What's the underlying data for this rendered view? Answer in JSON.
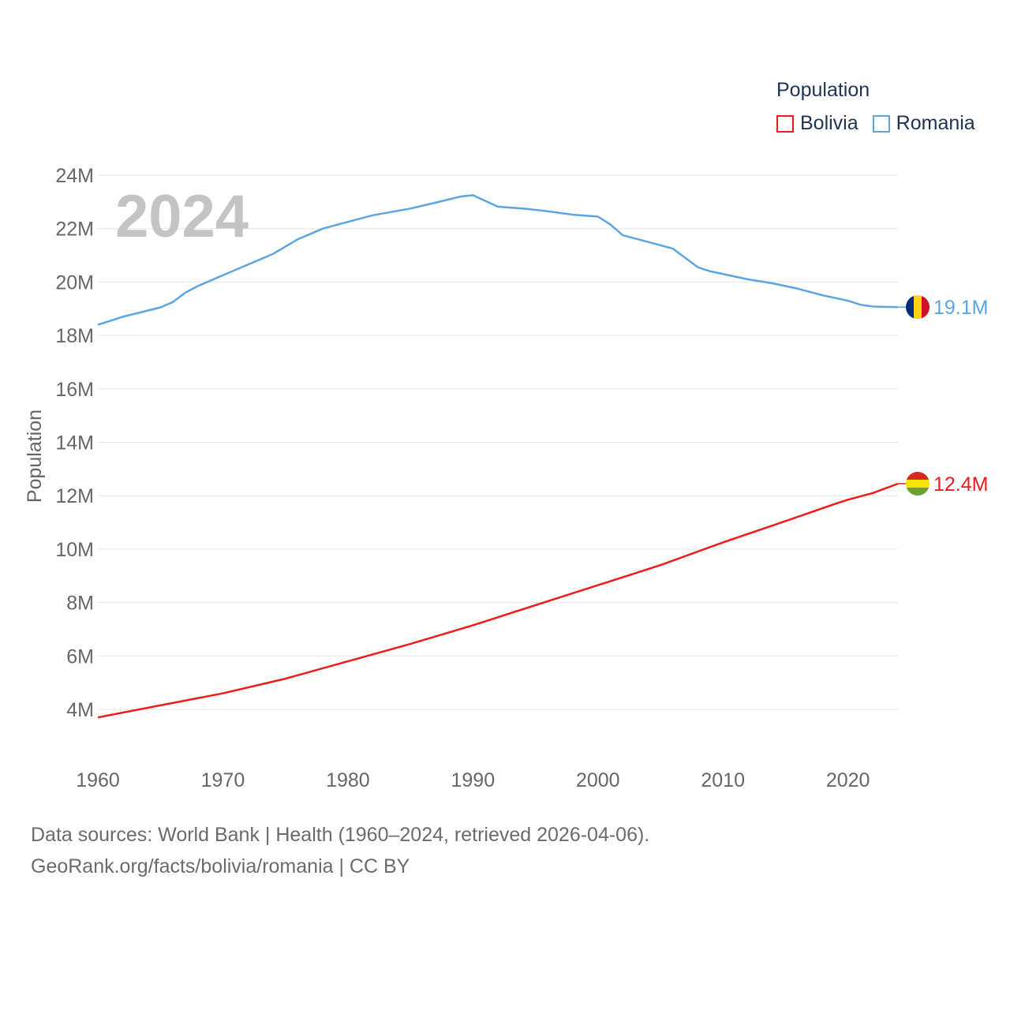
{
  "legend": {
    "title": "Population",
    "items": [
      {
        "name": "Bolivia",
        "color": "#ee1c1c"
      },
      {
        "name": "Romania",
        "color": "#5ba5e3"
      }
    ]
  },
  "footer": {
    "sources": "Data sources: World Bank | Health (1960–2024, retrieved 2026-04-06).",
    "credit": "GeoRank.org/facts/bolivia/romania | CC BY"
  },
  "chart_data": {
    "type": "line",
    "title": "Population",
    "year_label": "2024",
    "xlabel": "",
    "ylabel": "Population",
    "xlim": [
      1960,
      2024
    ],
    "ylim": [
      2000000,
      24000000
    ],
    "x_ticks": [
      1960,
      1970,
      1980,
      1990,
      2000,
      2010,
      2020
    ],
    "y_ticks": [
      {
        "value": 4000000,
        "label": "4M"
      },
      {
        "value": 6000000,
        "label": "6M"
      },
      {
        "value": 8000000,
        "label": "8M"
      },
      {
        "value": 10000000,
        "label": "10M"
      },
      {
        "value": 12000000,
        "label": "12M"
      },
      {
        "value": 14000000,
        "label": "14M"
      },
      {
        "value": 16000000,
        "label": "16M"
      },
      {
        "value": 18000000,
        "label": "18M"
      },
      {
        "value": 20000000,
        "label": "20M"
      },
      {
        "value": 22000000,
        "label": "22M"
      },
      {
        "value": 24000000,
        "label": "24M"
      }
    ],
    "grid": true,
    "legend_position": "top-right",
    "series": [
      {
        "name": "Romania",
        "color": "#5ba5e3",
        "end_label": "19.1M",
        "flag": "romania-flag-icon",
        "points": [
          [
            1960,
            18400000
          ],
          [
            1962,
            18700000
          ],
          [
            1965,
            19050000
          ],
          [
            1966,
            19250000
          ],
          [
            1967,
            19600000
          ],
          [
            1968,
            19850000
          ],
          [
            1970,
            20250000
          ],
          [
            1972,
            20650000
          ],
          [
            1974,
            21050000
          ],
          [
            1976,
            21600000
          ],
          [
            1978,
            22000000
          ],
          [
            1980,
            22250000
          ],
          [
            1982,
            22500000
          ],
          [
            1985,
            22750000
          ],
          [
            1987,
            22970000
          ],
          [
            1989,
            23200000
          ],
          [
            1990,
            23250000
          ],
          [
            1992,
            22820000
          ],
          [
            1994,
            22750000
          ],
          [
            1996,
            22650000
          ],
          [
            1998,
            22520000
          ],
          [
            2000,
            22450000
          ],
          [
            2001,
            22150000
          ],
          [
            2002,
            21750000
          ],
          [
            2004,
            21500000
          ],
          [
            2006,
            21250000
          ],
          [
            2008,
            20550000
          ],
          [
            2009,
            20400000
          ],
          [
            2012,
            20100000
          ],
          [
            2014,
            19950000
          ],
          [
            2016,
            19750000
          ],
          [
            2018,
            19500000
          ],
          [
            2020,
            19300000
          ],
          [
            2021,
            19150000
          ],
          [
            2022,
            19080000
          ],
          [
            2024,
            19060000
          ]
        ]
      },
      {
        "name": "Bolivia",
        "color": "#ee1c1c",
        "end_label": "12.4M",
        "flag": "bolivia-flag-icon",
        "points": [
          [
            1960,
            3700000
          ],
          [
            1965,
            4150000
          ],
          [
            1970,
            4600000
          ],
          [
            1975,
            5150000
          ],
          [
            1980,
            5800000
          ],
          [
            1985,
            6450000
          ],
          [
            1990,
            7150000
          ],
          [
            1995,
            7900000
          ],
          [
            2000,
            8650000
          ],
          [
            2005,
            9400000
          ],
          [
            2010,
            10250000
          ],
          [
            2015,
            11050000
          ],
          [
            2019,
            11700000
          ],
          [
            2020,
            11850000
          ],
          [
            2022,
            12100000
          ],
          [
            2024,
            12450000
          ]
        ]
      }
    ]
  }
}
